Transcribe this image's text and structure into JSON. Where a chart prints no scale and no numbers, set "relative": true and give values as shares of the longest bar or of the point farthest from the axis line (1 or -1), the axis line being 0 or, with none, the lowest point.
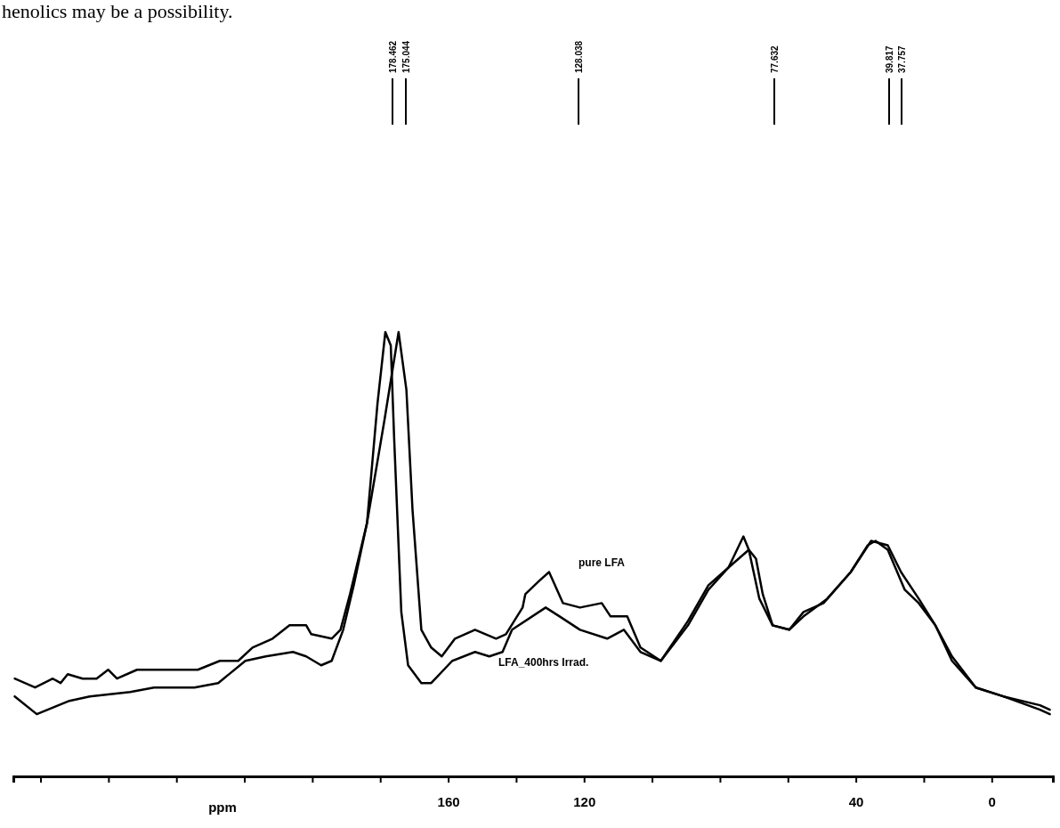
{
  "chart_data": {
    "type": "line",
    "relative": true,
    "xlabel": "ppm",
    "xlim": [
      288,
      -18
    ],
    "xticks": [
      {
        "value": 280,
        "label": null
      },
      {
        "value": 260,
        "label": null
      },
      {
        "value": 240,
        "label": null
      },
      {
        "value": 220,
        "label": null
      },
      {
        "value": 200,
        "label": null
      },
      {
        "value": 180,
        "label": null
      },
      160,
      {
        "value": 140,
        "label": null
      },
      120,
      {
        "value": 100,
        "label": null
      },
      {
        "value": 80,
        "label": null
      },
      {
        "value": 60,
        "label": null
      },
      40,
      {
        "value": 20,
        "label": null
      },
      0
    ],
    "annotations": [
      "henolics may be a possibility.",
      "178.462",
      "175.044",
      "128.038",
      "77.632",
      "39.817",
      "37.757"
    ],
    "series": [
      {
        "name": "pure LFA",
        "color": "#000000",
        "x": [
          287.6,
          281.6,
          276.4,
          274.1,
          272.0,
          267.6,
          263.5,
          260.1,
          257.5,
          251.6,
          247.7,
          239.6,
          233.7,
          227.2,
          221.8,
          217.6,
          211.7,
          206.7,
          201.8,
          200.3,
          194.3,
          191.7,
          188.9,
          183.9,
          178.8,
          174.6,
          172.3,
          170.5,
          167.9,
          165.0,
          161.9,
          158.0,
          152.1,
          145.9,
          143.0,
          138.1,
          137.3,
          133.2,
          130.3,
          126.2,
          121.2,
          114.8,
          112.2,
          107.3,
          103.4,
          97.4,
          89.4,
          83.4,
          77.5,
          73.1,
          71.5,
          68.4,
          64.5,
          59.6,
          55.4,
          49.5,
          41.5,
          35.5,
          30.6,
          26.7,
          21.5,
          16.6,
          11.7,
          4.7,
          -3.4,
          -14.2,
          -17.1
        ],
        "values": [
          0.22,
          0.2,
          0.22,
          0.21,
          0.23,
          0.22,
          0.22,
          0.24,
          0.22,
          0.24,
          0.24,
          0.24,
          0.24,
          0.26,
          0.26,
          0.29,
          0.31,
          0.34,
          0.34,
          0.32,
          0.31,
          0.33,
          0.41,
          0.57,
          0.8,
          1.0,
          0.87,
          0.6,
          0.33,
          0.29,
          0.27,
          0.31,
          0.33,
          0.31,
          0.32,
          0.38,
          0.41,
          0.44,
          0.46,
          0.39,
          0.38,
          0.39,
          0.36,
          0.36,
          0.29,
          0.26,
          0.35,
          0.43,
          0.47,
          0.54,
          0.51,
          0.4,
          0.34,
          0.33,
          0.37,
          0.39,
          0.46,
          0.53,
          0.52,
          0.46,
          0.4,
          0.34,
          0.26,
          0.2,
          0.18,
          0.16,
          0.15
        ]
      },
      {
        "name": "LFA_400hrs Irrad.",
        "color": "#000000",
        "x": [
          287.6,
          281.1,
          271.5,
          265.5,
          253.6,
          246.6,
          234.7,
          227.7,
          219.7,
          213.7,
          205.7,
          201.8,
          197.4,
          194.3,
          190.9,
          187.8,
          183.9,
          180.8,
          178.5,
          176.9,
          175.9,
          173.8,
          171.8,
          167.9,
          165.0,
          158.8,
          152.1,
          147.9,
          144.0,
          141.2,
          131.3,
          127.2,
          121.2,
          113.2,
          108.3,
          103.4,
          97.4,
          89.4,
          83.4,
          77.5,
          71.5,
          69.4,
          67.4,
          64.5,
          59.6,
          55.4,
          48.4,
          41.5,
          36.5,
          34.2,
          30.6,
          25.6,
          21.5,
          16.6,
          11.7,
          4.7,
          -3.4,
          -14.2,
          -17.1
        ],
        "values": [
          0.18,
          0.14,
          0.17,
          0.18,
          0.19,
          0.2,
          0.2,
          0.21,
          0.26,
          0.27,
          0.28,
          0.27,
          0.25,
          0.26,
          0.33,
          0.43,
          0.57,
          0.84,
          1.0,
          0.97,
          0.76,
          0.37,
          0.25,
          0.21,
          0.21,
          0.26,
          0.28,
          0.27,
          0.28,
          0.33,
          0.38,
          0.36,
          0.33,
          0.31,
          0.33,
          0.28,
          0.26,
          0.34,
          0.42,
          0.47,
          0.51,
          0.49,
          0.41,
          0.34,
          0.33,
          0.36,
          0.4,
          0.46,
          0.52,
          0.53,
          0.51,
          0.42,
          0.39,
          0.34,
          0.27,
          0.2,
          0.18,
          0.15,
          0.14
        ]
      }
    ]
  }
}
